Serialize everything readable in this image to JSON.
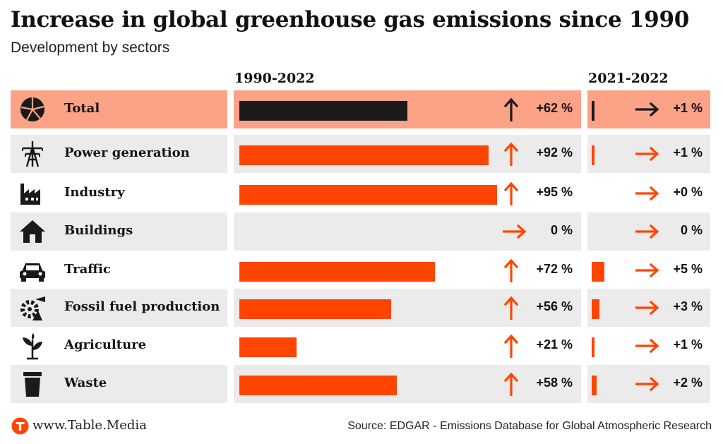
{
  "title": "Increase in global greenhouse gas emissions since 1990",
  "subtitle": "Development by sectors",
  "colors": {
    "accent": "#ff4500",
    "total_bar": "#1a1a1a",
    "total_row": "#fca286",
    "row_grey": "#ebebeb"
  },
  "chart_data": {
    "type": "bar",
    "title": "Increase in global greenhouse gas emissions since 1990",
    "subtitle": "Development by sectors",
    "periods": [
      "1990-2022",
      "2021-2022"
    ],
    "categories": [
      "Total",
      "Power generation",
      "Industry",
      "Buildings",
      "Traffic",
      "Fossil fuel production",
      "Agriculture",
      "Waste"
    ],
    "icons": [
      "pie-chart-icon",
      "power-pylon-icon",
      "factory-icon",
      "house-icon",
      "car-icon",
      "oil-pump-icon",
      "plant-icon",
      "waste-bin-icon"
    ],
    "series": [
      {
        "name": "1990-2022",
        "values": [
          62,
          92,
          95,
          0,
          72,
          56,
          21,
          58
        ],
        "labels": [
          "+62 %",
          "+92 %",
          "+95 %",
          "0 %",
          "+72 %",
          "+56 %",
          "+21 %",
          "+58 %"
        ],
        "trend": [
          "up",
          "up",
          "up",
          "flat",
          "up",
          "up",
          "up",
          "up"
        ]
      },
      {
        "name": "2021-2022",
        "values": [
          1,
          1,
          0,
          0,
          5,
          3,
          1,
          2
        ],
        "labels": [
          "+1 %",
          "+1 %",
          "+0 %",
          "0 %",
          "+5 %",
          "+3 %",
          "+1 %",
          "+2 %"
        ],
        "trend": [
          "flat",
          "flat",
          "flat",
          "flat",
          "flat",
          "flat",
          "flat",
          "flat"
        ]
      }
    ]
  },
  "footer": {
    "site": "www.Table.Media",
    "source": "Source: EDGAR - Emissions Database for Global Atmospheric Research"
  }
}
